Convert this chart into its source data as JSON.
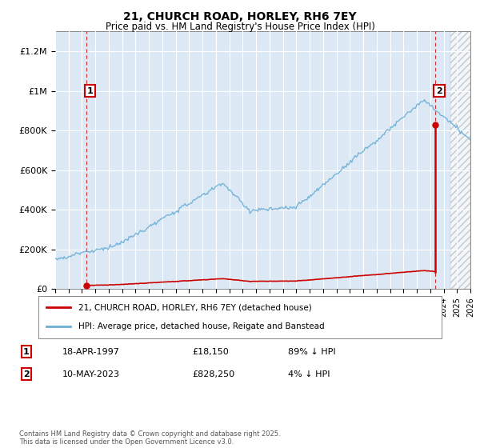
{
  "title": "21, CHURCH ROAD, HORLEY, RH6 7EY",
  "subtitle": "Price paid vs. HM Land Registry's House Price Index (HPI)",
  "legend_line1": "21, CHURCH ROAD, HORLEY, RH6 7EY (detached house)",
  "legend_line2": "HPI: Average price, detached house, Reigate and Banstead",
  "footer": "Contains HM Land Registry data © Crown copyright and database right 2025.\nThis data is licensed under the Open Government Licence v3.0.",
  "annotation1_date": "18-APR-1997",
  "annotation1_price": "£18,150",
  "annotation1_hpi": "89% ↓ HPI",
  "annotation2_date": "10-MAY-2023",
  "annotation2_price": "£828,250",
  "annotation2_hpi": "4% ↓ HPI",
  "hpi_color": "#6baed6",
  "price_color": "#cc0000",
  "background_color": "#dce9f5",
  "ylim": [
    0,
    1300000
  ],
  "yticks": [
    0,
    200000,
    400000,
    600000,
    800000,
    1000000,
    1200000
  ],
  "ytick_labels": [
    "£0",
    "£200K",
    "£400K",
    "£600K",
    "£800K",
    "£1M",
    "£1.2M"
  ],
  "sale1_year": 1997.3,
  "sale1_price": 18150,
  "sale2_year": 2023.37,
  "sale2_price": 828250,
  "xmin": 1995,
  "xmax": 2026,
  "hatch_start": 2024.5
}
